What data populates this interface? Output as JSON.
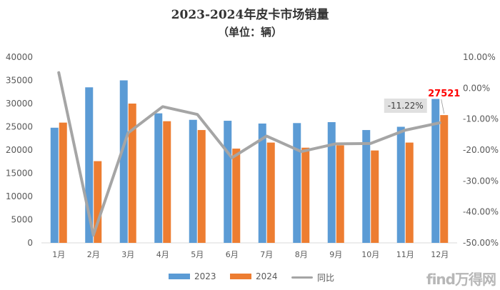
{
  "title": "2023-2024年皮卡市场销量",
  "subtitle": "（单位：辆）",
  "watermark": "find万得网",
  "colors": {
    "series_2023": "#5b9bd5",
    "series_2024": "#ed7d31",
    "yoy": "#a5a5a5",
    "highlight_label": "#ff0000",
    "callout_bg": "#e0e0e0"
  },
  "chart_data": {
    "type": "bar",
    "title": "2023-2024年皮卡市场销量",
    "subtitle": "（单位：辆）",
    "categories": [
      "1月",
      "2月",
      "3月",
      "4月",
      "5月",
      "6月",
      "7月",
      "8月",
      "9月",
      "10月",
      "11月",
      "12月"
    ],
    "series": [
      {
        "name": "2023",
        "type": "bar",
        "values": [
          24800,
          33500,
          35000,
          27900,
          26500,
          26300,
          25700,
          25800,
          26000,
          24300,
          25000,
          31000
        ]
      },
      {
        "name": "2024",
        "type": "bar",
        "values": [
          25900,
          17600,
          30000,
          26200,
          24300,
          20300,
          21600,
          20500,
          21000,
          19900,
          21600,
          27521
        ]
      },
      {
        "name": "同比",
        "type": "line",
        "axis": "right",
        "values": [
          5.0,
          -47.5,
          -14.5,
          -6.0,
          -8.5,
          -22.5,
          -15.5,
          -20.5,
          -18.0,
          -17.9,
          -13.6,
          -11.22
        ]
      }
    ],
    "left_axis": {
      "ylim": [
        0,
        40000
      ],
      "ticks": [
        "0",
        "5000",
        "10000",
        "15000",
        "20000",
        "25000",
        "30000",
        "35000",
        "40000"
      ]
    },
    "right_axis": {
      "ylim": [
        -50,
        10
      ],
      "ticks": [
        "-50.00%",
        "-40.00%",
        "-30.00%",
        "-20.00%",
        "-10.00%",
        "0.00%",
        "10.00%"
      ]
    },
    "annotations": {
      "last_value_label": "27521",
      "last_yoy_label": "-11.22%"
    },
    "legend": {
      "position": "bottom",
      "items": [
        "2023",
        "2024",
        "同比"
      ]
    },
    "grid": false
  }
}
